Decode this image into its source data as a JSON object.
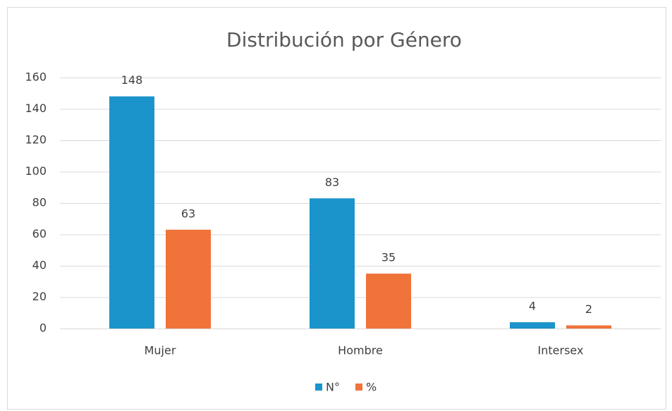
{
  "chart_data": {
    "type": "bar",
    "title": "Distribución por Género",
    "categories": [
      "Mujer",
      "Hombre",
      "Intersex"
    ],
    "series": [
      {
        "name": "N°",
        "color": "#1a94cb",
        "values": [
          148,
          83,
          4
        ]
      },
      {
        "name": "%",
        "color": "#f0733a",
        "values": [
          63,
          35,
          2
        ]
      }
    ],
    "ylim": [
      0,
      160
    ],
    "yticks": [
      0,
      20,
      40,
      60,
      80,
      100,
      120,
      140,
      160
    ],
    "grid": true,
    "legend": "bottom"
  }
}
